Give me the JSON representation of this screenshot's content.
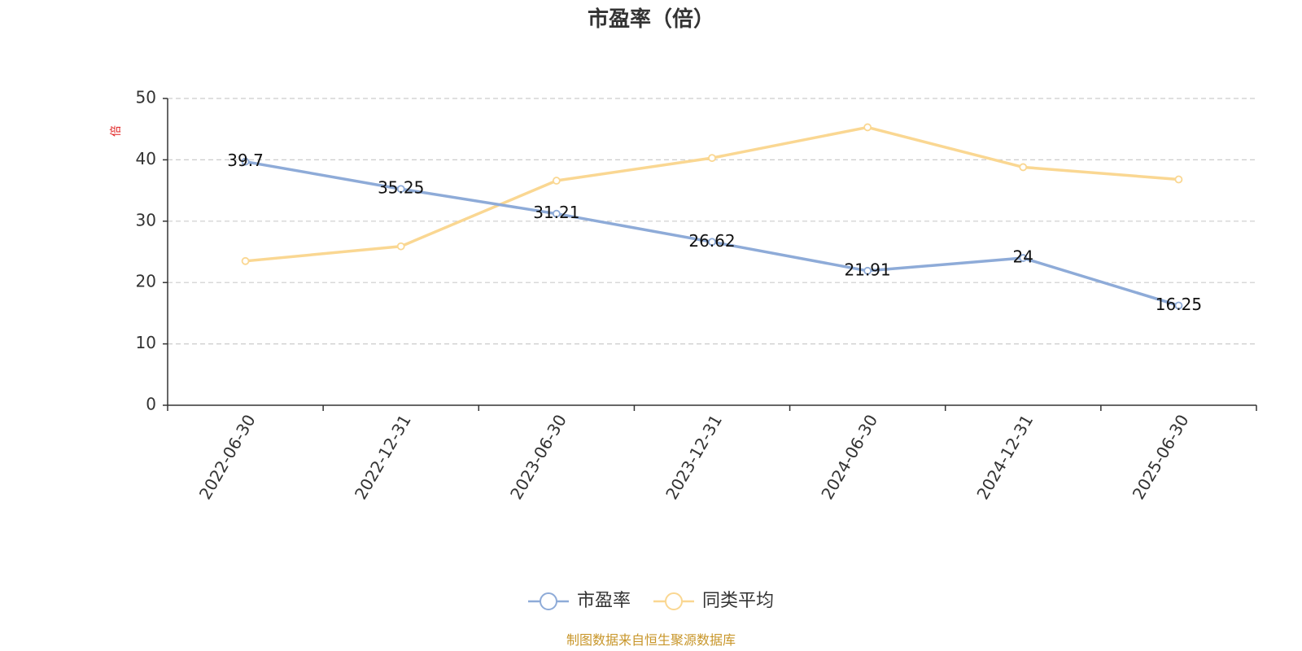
{
  "chart_data": {
    "type": "line",
    "title": "市盈率（倍）",
    "ylabel": "倍",
    "categories": [
      "2022-06-30",
      "2022-12-31",
      "2023-06-30",
      "2023-12-31",
      "2024-06-30",
      "2024-12-31",
      "2025-06-30"
    ],
    "ylim": [
      0,
      50
    ],
    "yticks": [
      0,
      10,
      20,
      30,
      40,
      50
    ],
    "grid": true,
    "legend_position": "bottom-center",
    "series": [
      {
        "name": "市盈率",
        "values": [
          39.7,
          35.25,
          31.21,
          26.62,
          21.91,
          24,
          16.25
        ],
        "labels": [
          "39.7",
          "35.25",
          "31.21",
          "26.62",
          "21.91",
          "24",
          "16.25"
        ],
        "color": "#8eabd8"
      },
      {
        "name": "同类平均",
        "values": [
          23.5,
          25.9,
          36.6,
          40.3,
          45.3,
          38.8,
          36.8
        ],
        "color": "#fad792"
      }
    ]
  },
  "source_text": "制图数据来自恒生聚源数据库",
  "colors": {
    "title": "#333333",
    "axis": "#333333",
    "grid": "#cccccc",
    "unit": "#e02020",
    "source": "#c8962a"
  }
}
